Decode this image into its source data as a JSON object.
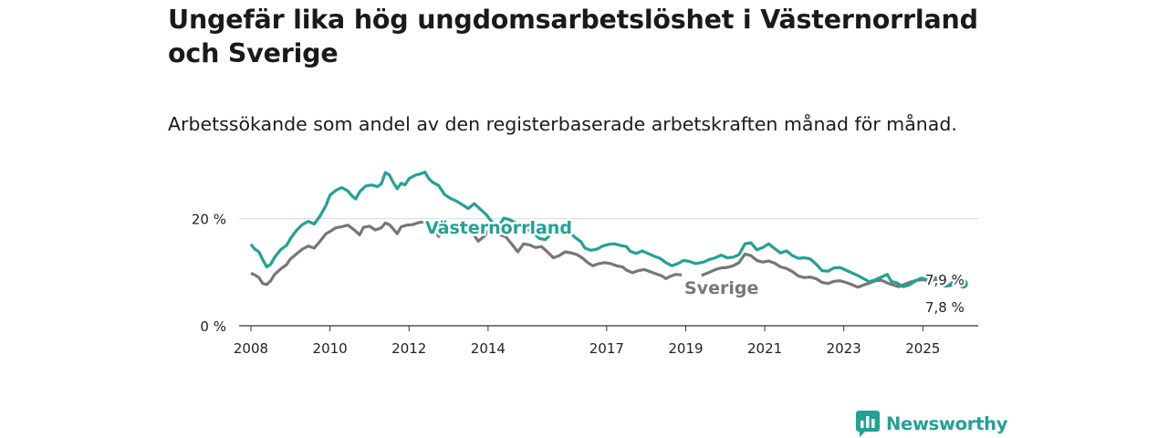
{
  "header": {
    "title": "Ungefär lika hög ungdomsarbetslöshet i Västernorrland och Sverige",
    "subtitle": "Arbetssökande som andel av den registerbaserade arbetskraften månad för månad."
  },
  "brand": {
    "name": "Newsworthy",
    "logo_icon": "bar-chart-speech-bubble-icon",
    "color": "#22a196"
  },
  "chart_data": {
    "type": "line",
    "title": "Ungefär lika hög ungdomsarbetslöshet i Västernorrland och Sverige",
    "subtitle": "Arbetssökande som andel av den registerbaserade arbetskraften månad för månad.",
    "xlabel": "",
    "ylabel": "",
    "xlim": [
      2007.7,
      2026.4
    ],
    "ylim": [
      0,
      30
    ],
    "x_ticks": [
      2008,
      2010,
      2012,
      2014,
      2017,
      2019,
      2021,
      2023,
      2025
    ],
    "x_tick_labels": [
      "2008",
      "2010",
      "2012",
      "2014",
      "2017",
      "2019",
      "2021",
      "2023",
      "2025"
    ],
    "y_ticks": [
      0,
      20
    ],
    "y_tick_labels": [
      "0 %",
      "20 %"
    ],
    "grid": true,
    "legend": "direct labels on lines",
    "series": [
      {
        "name": "Västernorrland",
        "color": "#22a196",
        "points": [
          [
            2008.0,
            15.2
          ],
          [
            2008.1,
            14.3
          ],
          [
            2008.2,
            13.8
          ],
          [
            2008.3,
            12.3
          ],
          [
            2008.4,
            11.0
          ],
          [
            2008.5,
            11.5
          ],
          [
            2008.6,
            12.8
          ],
          [
            2008.75,
            14.2
          ],
          [
            2008.9,
            15.0
          ],
          [
            2009.0,
            16.3
          ],
          [
            2009.15,
            17.8
          ],
          [
            2009.3,
            18.9
          ],
          [
            2009.45,
            19.5
          ],
          [
            2009.6,
            19.0
          ],
          [
            2009.75,
            20.5
          ],
          [
            2009.9,
            22.5
          ],
          [
            2010.0,
            24.4
          ],
          [
            2010.15,
            25.3
          ],
          [
            2010.3,
            25.8
          ],
          [
            2010.45,
            25.2
          ],
          [
            2010.55,
            24.3
          ],
          [
            2010.65,
            23.7
          ],
          [
            2010.75,
            25.0
          ],
          [
            2010.9,
            26.1
          ],
          [
            2011.05,
            26.3
          ],
          [
            2011.2,
            26.0
          ],
          [
            2011.3,
            26.5
          ],
          [
            2011.4,
            28.6
          ],
          [
            2011.5,
            28.2
          ],
          [
            2011.6,
            26.8
          ],
          [
            2011.7,
            25.6
          ],
          [
            2011.8,
            26.6
          ],
          [
            2011.9,
            26.3
          ],
          [
            2012.0,
            27.5
          ],
          [
            2012.15,
            28.1
          ],
          [
            2012.3,
            28.4
          ],
          [
            2012.4,
            28.7
          ],
          [
            2012.5,
            27.5
          ],
          [
            2012.6,
            26.8
          ],
          [
            2012.75,
            26.2
          ],
          [
            2012.9,
            24.5
          ],
          [
            2013.05,
            23.8
          ],
          [
            2013.2,
            23.3
          ],
          [
            2013.35,
            22.6
          ],
          [
            2013.5,
            21.9
          ],
          [
            2013.65,
            22.8
          ],
          [
            2013.8,
            21.8
          ],
          [
            2013.95,
            20.8
          ],
          [
            2014.1,
            19.4
          ],
          [
            2014.25,
            18.4
          ],
          [
            2014.4,
            20.1
          ],
          [
            2014.55,
            19.8
          ],
          [
            2014.7,
            19.2
          ],
          [
            2014.85,
            18.9
          ],
          [
            2015.0,
            17.9
          ],
          [
            2015.15,
            17.3
          ],
          [
            2015.3,
            16.3
          ],
          [
            2015.45,
            16.1
          ],
          [
            2015.6,
            17.2
          ],
          [
            2015.75,
            17.7
          ],
          [
            2015.9,
            17.8
          ],
          [
            2016.05,
            17.6
          ],
          [
            2016.2,
            16.5
          ],
          [
            2016.35,
            15.7
          ],
          [
            2016.45,
            14.5
          ],
          [
            2016.6,
            14.1
          ],
          [
            2016.75,
            14.3
          ],
          [
            2016.9,
            14.9
          ],
          [
            2017.05,
            15.2
          ],
          [
            2017.2,
            15.3
          ],
          [
            2017.35,
            15.0
          ],
          [
            2017.5,
            14.8
          ],
          [
            2017.6,
            13.9
          ],
          [
            2017.75,
            13.5
          ],
          [
            2017.9,
            14.0
          ],
          [
            2018.05,
            13.5
          ],
          [
            2018.2,
            13.0
          ],
          [
            2018.35,
            12.6
          ],
          [
            2018.5,
            11.8
          ],
          [
            2018.65,
            11.2
          ],
          [
            2018.8,
            11.6
          ],
          [
            2018.95,
            12.2
          ],
          [
            2019.1,
            12.0
          ],
          [
            2019.25,
            11.6
          ],
          [
            2019.45,
            11.9
          ],
          [
            2019.6,
            12.4
          ],
          [
            2019.75,
            12.7
          ],
          [
            2019.9,
            13.2
          ],
          [
            2020.05,
            12.7
          ],
          [
            2020.2,
            12.8
          ],
          [
            2020.35,
            13.3
          ],
          [
            2020.5,
            15.3
          ],
          [
            2020.65,
            15.5
          ],
          [
            2020.8,
            14.2
          ],
          [
            2020.95,
            14.6
          ],
          [
            2021.1,
            15.3
          ],
          [
            2021.25,
            14.4
          ],
          [
            2021.4,
            13.6
          ],
          [
            2021.55,
            14.0
          ],
          [
            2021.7,
            13.1
          ],
          [
            2021.85,
            12.6
          ],
          [
            2022.0,
            12.7
          ],
          [
            2022.15,
            12.5
          ],
          [
            2022.3,
            11.5
          ],
          [
            2022.45,
            10.3
          ],
          [
            2022.6,
            10.2
          ],
          [
            2022.75,
            10.8
          ],
          [
            2022.9,
            10.9
          ],
          [
            2023.05,
            10.4
          ],
          [
            2023.2,
            9.9
          ],
          [
            2023.35,
            9.4
          ],
          [
            2023.5,
            8.8
          ],
          [
            2023.65,
            8.2
          ],
          [
            2023.8,
            8.6
          ],
          [
            2023.95,
            9.1
          ],
          [
            2024.1,
            9.6
          ],
          [
            2024.2,
            8.3
          ],
          [
            2024.35,
            8.0
          ],
          [
            2024.5,
            7.3
          ],
          [
            2024.65,
            7.6
          ],
          [
            2024.8,
            8.3
          ],
          [
            2024.95,
            8.9
          ],
          [
            2025.1,
            8.7
          ],
          [
            2025.25,
            9.1
          ],
          [
            2025.4,
            8.8
          ],
          [
            2025.55,
            7.4
          ],
          [
            2025.65,
            7.5
          ],
          [
            2025.75,
            8.1
          ],
          [
            2025.85,
            8.7
          ],
          [
            2025.95,
            7.6
          ],
          [
            2026.0,
            7.9
          ]
        ],
        "end_label": "7,9 %",
        "direct_label": "Västernorrland"
      },
      {
        "name": "Sverige",
        "color": "#777777",
        "points": [
          [
            2008.0,
            9.8
          ],
          [
            2008.1,
            9.5
          ],
          [
            2008.2,
            9.0
          ],
          [
            2008.3,
            7.9
          ],
          [
            2008.4,
            7.7
          ],
          [
            2008.5,
            8.4
          ],
          [
            2008.6,
            9.6
          ],
          [
            2008.75,
            10.6
          ],
          [
            2008.9,
            11.4
          ],
          [
            2009.0,
            12.5
          ],
          [
            2009.15,
            13.4
          ],
          [
            2009.3,
            14.3
          ],
          [
            2009.45,
            14.9
          ],
          [
            2009.6,
            14.5
          ],
          [
            2009.75,
            15.8
          ],
          [
            2009.9,
            17.2
          ],
          [
            2010.0,
            17.6
          ],
          [
            2010.15,
            18.3
          ],
          [
            2010.3,
            18.5
          ],
          [
            2010.45,
            18.8
          ],
          [
            2010.6,
            18.0
          ],
          [
            2010.75,
            17.0
          ],
          [
            2010.85,
            18.4
          ],
          [
            2011.0,
            18.6
          ],
          [
            2011.15,
            17.9
          ],
          [
            2011.3,
            18.3
          ],
          [
            2011.4,
            19.2
          ],
          [
            2011.5,
            18.9
          ],
          [
            2011.6,
            18.1
          ],
          [
            2011.7,
            17.2
          ],
          [
            2011.8,
            18.5
          ],
          [
            2011.95,
            18.8
          ],
          [
            2012.1,
            18.9
          ],
          [
            2012.25,
            19.3
          ],
          [
            2012.4,
            19.4
          ],
          [
            2012.5,
            18.2
          ],
          [
            2012.65,
            17.9
          ],
          [
            2012.75,
            16.7
          ],
          [
            2012.9,
            17.9
          ],
          [
            2013.05,
            18.4
          ],
          [
            2013.2,
            18.5
          ],
          [
            2013.35,
            18.4
          ],
          [
            2013.5,
            18.0
          ],
          [
            2013.6,
            17.4
          ],
          [
            2013.75,
            15.8
          ],
          [
            2013.9,
            16.7
          ],
          [
            2014.0,
            17.7
          ],
          [
            2014.15,
            17.5
          ],
          [
            2014.3,
            17.0
          ],
          [
            2014.45,
            16.6
          ],
          [
            2014.55,
            15.7
          ],
          [
            2014.65,
            14.8
          ],
          [
            2014.75,
            13.8
          ],
          [
            2014.9,
            15.3
          ],
          [
            2015.05,
            15.1
          ],
          [
            2015.2,
            14.6
          ],
          [
            2015.35,
            14.8
          ],
          [
            2015.5,
            13.8
          ],
          [
            2015.65,
            12.7
          ],
          [
            2015.8,
            13.1
          ],
          [
            2015.95,
            13.8
          ],
          [
            2016.1,
            13.6
          ],
          [
            2016.25,
            13.3
          ],
          [
            2016.4,
            12.6
          ],
          [
            2016.5,
            11.9
          ],
          [
            2016.65,
            11.2
          ],
          [
            2016.8,
            11.6
          ],
          [
            2016.95,
            11.8
          ],
          [
            2017.1,
            11.6
          ],
          [
            2017.25,
            11.2
          ],
          [
            2017.4,
            11.0
          ],
          [
            2017.5,
            10.4
          ],
          [
            2017.65,
            9.9
          ],
          [
            2017.8,
            10.3
          ],
          [
            2017.95,
            10.5
          ],
          [
            2018.1,
            10.1
          ],
          [
            2018.25,
            9.7
          ],
          [
            2018.4,
            9.3
          ],
          [
            2018.5,
            8.8
          ],
          [
            2018.6,
            9.2
          ],
          [
            2018.75,
            9.6
          ],
          [
            2018.9,
            9.5
          ]
        ],
        "points_after_label": [
          [
            2019.4,
            9.4
          ],
          [
            2019.6,
            10.0
          ],
          [
            2019.75,
            10.5
          ],
          [
            2019.9,
            10.8
          ],
          [
            2020.05,
            10.9
          ],
          [
            2020.2,
            11.2
          ],
          [
            2020.35,
            11.8
          ],
          [
            2020.5,
            13.4
          ],
          [
            2020.65,
            13.1
          ],
          [
            2020.8,
            12.2
          ],
          [
            2020.95,
            11.9
          ],
          [
            2021.1,
            12.1
          ],
          [
            2021.25,
            11.7
          ],
          [
            2021.4,
            11.0
          ],
          [
            2021.55,
            10.7
          ],
          [
            2021.7,
            10.1
          ],
          [
            2021.85,
            9.3
          ],
          [
            2022.0,
            9.0
          ],
          [
            2022.15,
            9.1
          ],
          [
            2022.3,
            8.8
          ],
          [
            2022.45,
            8.1
          ],
          [
            2022.6,
            7.9
          ],
          [
            2022.75,
            8.3
          ],
          [
            2022.9,
            8.4
          ],
          [
            2023.05,
            8.1
          ],
          [
            2023.2,
            7.7
          ],
          [
            2023.35,
            7.2
          ],
          [
            2023.5,
            7.6
          ],
          [
            2023.65,
            8.0
          ],
          [
            2023.8,
            8.4
          ],
          [
            2023.95,
            8.5
          ],
          [
            2024.1,
            8.0
          ],
          [
            2024.25,
            7.6
          ],
          [
            2024.4,
            7.3
          ],
          [
            2024.55,
            7.8
          ],
          [
            2024.7,
            8.2
          ],
          [
            2024.85,
            8.5
          ],
          [
            2025.0,
            8.6
          ],
          [
            2025.15,
            8.4
          ],
          [
            2025.3,
            8.5
          ],
          [
            2025.45,
            8.0
          ],
          [
            2025.6,
            7.4
          ],
          [
            2025.75,
            7.6
          ],
          [
            2025.9,
            7.9
          ],
          [
            2026.0,
            7.8
          ]
        ],
        "end_label": "7,8 %",
        "direct_label": "Sverige"
      }
    ]
  }
}
